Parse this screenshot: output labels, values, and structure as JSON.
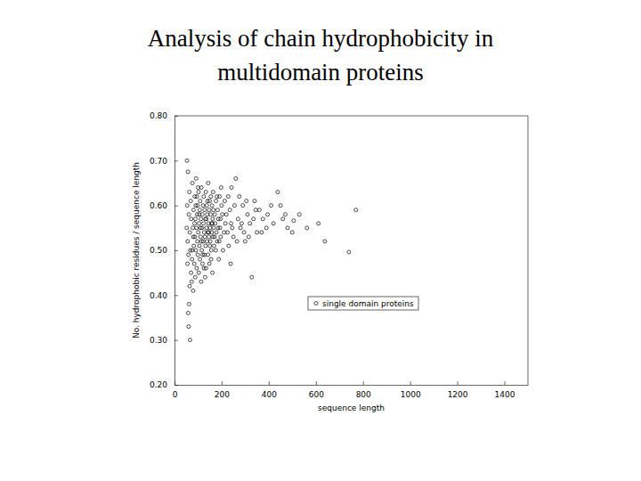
{
  "chart_data": {
    "type": "scatter",
    "title": "Analysis of chain hydrophobicity in multidomain proteins",
    "x_label": "sequence length",
    "y_label": "No. hydrophobic residues / sequence length",
    "xlim": [
      0,
      1500
    ],
    "xticks": [
      0,
      200,
      400,
      600,
      800,
      1000,
      1200,
      1400
    ],
    "ylim": [
      0.2,
      0.8
    ],
    "yticks": [
      {
        "value": 0.2,
        "label": "0.20"
      },
      {
        "value": 0.3,
        "label": "0.30"
      },
      {
        "value": 0.4,
        "label": "0.40"
      },
      {
        "value": 0.5,
        "label": "0.50"
      },
      {
        "value": 0.6,
        "label": "0.60"
      },
      {
        "value": 0.7,
        "label": "0.70"
      },
      {
        "value": 0.8,
        "label": "0.80"
      }
    ],
    "legend": "lower right",
    "x": [
      53,
      57,
      62,
      66,
      58,
      60,
      64,
      70,
      55,
      75,
      80,
      85,
      90,
      95,
      100,
      105,
      110,
      115,
      120,
      125,
      130,
      135,
      140,
      145,
      150,
      155,
      160,
      165,
      170,
      175,
      180,
      185,
      190,
      195,
      200,
      210,
      220,
      230,
      240,
      242,
      250,
      260,
      270,
      280,
      290,
      300,
      310,
      320,
      328,
      340,
      350,
      360,
      375,
      390,
      410,
      438,
      460,
      480,
      506,
      530,
      562,
      611,
      638,
      740,
      770,
      52,
      54,
      56,
      59,
      61,
      63,
      65,
      67,
      69,
      71,
      73,
      74,
      76,
      78,
      79,
      81,
      82,
      84,
      86,
      87,
      88,
      89,
      91,
      92,
      93,
      94,
      96,
      97,
      98,
      99,
      101,
      102,
      103,
      104,
      106,
      107,
      108,
      109,
      111,
      112,
      113,
      114,
      116,
      117,
      118,
      119,
      121,
      122,
      123,
      124,
      126,
      127,
      128,
      129,
      131,
      132,
      133,
      134,
      136,
      137,
      138,
      139,
      141,
      142,
      143,
      144,
      146,
      147,
      148,
      149,
      151,
      152,
      153,
      154,
      156,
      157,
      158,
      159,
      161,
      162,
      163,
      164,
      166,
      168,
      171,
      173,
      176,
      178,
      181,
      183,
      186,
      188,
      191,
      193,
      196,
      198,
      203,
      206,
      213,
      216,
      225,
      228,
      235,
      238,
      245,
      255,
      265,
      275,
      285,
      295,
      305,
      315,
      335,
      345,
      370,
      395,
      420,
      450,
      470,
      500
    ],
    "series": [
      {
        "name": "single domain proteins",
        "color": "#000000",
        "marker": "circle",
        "values": [
          0.7,
          0.675,
          0.38,
          0.3,
          0.36,
          0.33,
          0.42,
          0.45,
          0.47,
          0.5,
          0.53,
          0.56,
          0.6,
          0.62,
          0.64,
          0.58,
          0.55,
          0.52,
          0.49,
          0.46,
          0.44,
          0.57,
          0.61,
          0.54,
          0.51,
          0.48,
          0.56,
          0.59,
          0.53,
          0.5,
          0.62,
          0.55,
          0.52,
          0.57,
          0.6,
          0.54,
          0.58,
          0.51,
          0.56,
          0.64,
          0.53,
          0.66,
          0.57,
          0.55,
          0.6,
          0.52,
          0.58,
          0.56,
          0.44,
          0.61,
          0.54,
          0.59,
          0.57,
          0.55,
          0.6,
          0.63,
          0.57,
          0.55,
          0.566,
          0.58,
          0.55,
          0.56,
          0.52,
          0.496,
          0.59,
          0.55,
          0.6,
          0.52,
          0.49,
          0.58,
          0.63,
          0.54,
          0.5,
          0.61,
          0.57,
          0.43,
          0.48,
          0.65,
          0.55,
          0.41,
          0.59,
          0.51,
          0.47,
          0.62,
          0.53,
          0.44,
          0.57,
          0.5,
          0.66,
          0.55,
          0.46,
          0.58,
          0.52,
          0.6,
          0.49,
          0.54,
          0.63,
          0.45,
          0.56,
          0.51,
          0.59,
          0.48,
          0.61,
          0.53,
          0.57,
          0.43,
          0.64,
          0.5,
          0.55,
          0.58,
          0.47,
          0.6,
          0.52,
          0.56,
          0.62,
          0.54,
          0.49,
          0.59,
          0.53,
          0.57,
          0.51,
          0.63,
          0.46,
          0.55,
          0.6,
          0.52,
          0.58,
          0.54,
          0.49,
          0.65,
          0.56,
          0.53,
          0.59,
          0.47,
          0.61,
          0.55,
          0.52,
          0.58,
          0.62,
          0.5,
          0.56,
          0.54,
          0.6,
          0.45,
          0.57,
          0.53,
          0.63,
          0.55,
          0.51,
          0.58,
          0.56,
          0.61,
          0.54,
          0.52,
          0.59,
          0.57,
          0.48,
          0.62,
          0.55,
          0.53,
          0.64,
          0.58,
          0.5,
          0.61,
          0.56,
          0.54,
          0.62,
          0.59,
          0.47,
          0.55,
          0.6,
          0.52,
          0.62,
          0.56,
          0.54,
          0.61,
          0.53,
          0.57,
          0.59,
          0.54,
          0.58,
          0.56,
          0.6,
          0.58,
          0.54
        ]
      }
    ]
  }
}
